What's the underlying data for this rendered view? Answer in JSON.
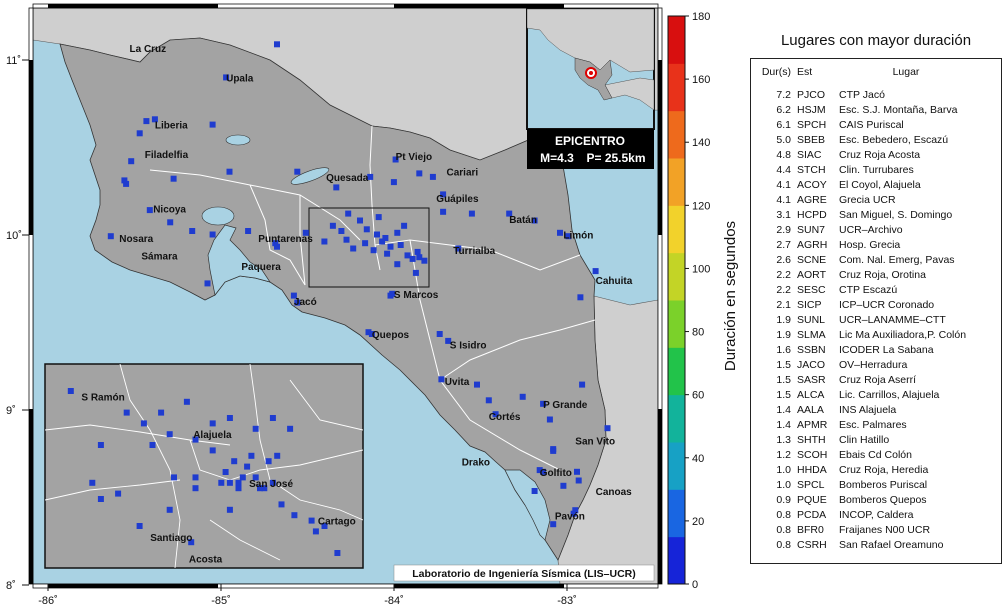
{
  "map": {
    "credit": "Laboratorio de Ingeniería Sísmica (LIS–UCR)",
    "colors": {
      "sea": "#a9d2e3",
      "land": "#a3a3a3",
      "neighbor": "#cfcfcf",
      "boundary": "#ffffff",
      "station": "#1f3ccf"
    },
    "lon_ticks": [
      "-86˚",
      "-85˚",
      "-84˚",
      "-83˚"
    ],
    "lat_ticks": [
      "11˚",
      "10˚",
      "9˚",
      "8˚"
    ],
    "cities": [
      {
        "name": "La Cruz",
        "lon": -85.59,
        "lat": 11.07
      },
      {
        "name": "Upala",
        "lon": -85.02,
        "lat": 10.9
      },
      {
        "name": "Liberia",
        "lon": -85.44,
        "lat": 10.63
      },
      {
        "name": "Filadelfia",
        "lon": -85.5,
        "lat": 10.46
      },
      {
        "name": "Quesada",
        "lon": -84.43,
        "lat": 10.33
      },
      {
        "name": "Pt Viejo",
        "lon": -84.02,
        "lat": 10.45
      },
      {
        "name": "Cariari",
        "lon": -83.72,
        "lat": 10.36
      },
      {
        "name": "Nicoya",
        "lon": -85.45,
        "lat": 10.15
      },
      {
        "name": "Guápiles",
        "lon": -83.78,
        "lat": 10.21
      },
      {
        "name": "Batán",
        "lon": -83.35,
        "lat": 10.09
      },
      {
        "name": "Limón",
        "lon": -83.03,
        "lat": 10.0
      },
      {
        "name": "Nosara",
        "lon": -85.65,
        "lat": 9.98
      },
      {
        "name": "Puntarenas",
        "lon": -84.83,
        "lat": 9.98
      },
      {
        "name": "Turrialba",
        "lon": -83.68,
        "lat": 9.91
      },
      {
        "name": "Sámara",
        "lon": -85.52,
        "lat": 9.88
      },
      {
        "name": "Paquera",
        "lon": -84.93,
        "lat": 9.82
      },
      {
        "name": "Cahuita",
        "lon": -82.84,
        "lat": 9.74
      },
      {
        "name": "S Marcos",
        "lon": -84.03,
        "lat": 9.66
      },
      {
        "name": "Jacó",
        "lon": -84.62,
        "lat": 9.62
      },
      {
        "name": "Quepos",
        "lon": -84.16,
        "lat": 9.43
      },
      {
        "name": "S Isidro",
        "lon": -83.7,
        "lat": 9.37
      },
      {
        "name": "Uvita",
        "lon": -83.73,
        "lat": 9.16
      },
      {
        "name": "P Grande",
        "lon": -83.15,
        "lat": 9.03
      },
      {
        "name": "Cortés",
        "lon": -83.47,
        "lat": 8.96
      },
      {
        "name": "San Vito",
        "lon": -82.96,
        "lat": 8.82
      },
      {
        "name": "Drako",
        "lon": -83.63,
        "lat": 8.7
      },
      {
        "name": "Golfito",
        "lon": -83.17,
        "lat": 8.64
      },
      {
        "name": "Canoas",
        "lon": -82.84,
        "lat": 8.53
      },
      {
        "name": "Pavón",
        "lon": -83.08,
        "lat": 8.39
      }
    ],
    "stations": [
      [
        -84.72,
        11.09
      ],
      [
        -85.02,
        10.9
      ],
      [
        -85.49,
        10.65
      ],
      [
        -85.44,
        10.66
      ],
      [
        -85.53,
        10.58
      ],
      [
        -85.1,
        10.63
      ],
      [
        -85.58,
        10.42
      ],
      [
        -85.62,
        10.31
      ],
      [
        -85.61,
        10.29
      ],
      [
        -85.33,
        10.32
      ],
      [
        -85.0,
        10.36
      ],
      [
        -84.6,
        10.36
      ],
      [
        -84.37,
        10.27
      ],
      [
        -84.17,
        10.33
      ],
      [
        -84.03,
        10.3
      ],
      [
        -84.02,
        10.43
      ],
      [
        -83.88,
        10.35
      ],
      [
        -83.8,
        10.33
      ],
      [
        -83.74,
        10.23
      ],
      [
        -83.57,
        10.12
      ],
      [
        -83.35,
        10.12
      ],
      [
        -83.2,
        10.08
      ],
      [
        -83.05,
        10.01
      ],
      [
        -83.0,
        9.99
      ],
      [
        -85.47,
        10.14
      ],
      [
        -85.35,
        10.07
      ],
      [
        -85.22,
        10.02
      ],
      [
        -85.1,
        10.0
      ],
      [
        -84.89,
        10.02
      ],
      [
        -84.73,
        9.95
      ],
      [
        -84.72,
        9.93
      ],
      [
        -85.7,
        9.99
      ],
      [
        -85.13,
        9.72
      ],
      [
        -84.62,
        9.65
      ],
      [
        -84.6,
        9.61
      ],
      [
        -84.18,
        9.44
      ],
      [
        -84.16,
        9.43
      ],
      [
        -84.05,
        9.65
      ],
      [
        -84.04,
        9.66
      ],
      [
        -83.9,
        9.78
      ],
      [
        -83.76,
        9.43
      ],
      [
        -83.71,
        9.39
      ],
      [
        -83.75,
        9.17
      ],
      [
        -83.54,
        9.14
      ],
      [
        -83.47,
        9.05
      ],
      [
        -83.43,
        8.97
      ],
      [
        -83.27,
        9.07
      ],
      [
        -83.15,
        9.03
      ],
      [
        -83.11,
        8.94
      ],
      [
        -82.92,
        9.14
      ],
      [
        -82.77,
        8.89
      ],
      [
        -82.84,
        9.79
      ],
      [
        -82.93,
        9.64
      ],
      [
        -83.09,
        8.77
      ],
      [
        -83.09,
        8.76
      ],
      [
        -83.17,
        8.65
      ],
      [
        -83.15,
        8.64
      ],
      [
        -82.95,
        8.64
      ],
      [
        -82.94,
        8.59
      ],
      [
        -82.96,
        8.42
      ],
      [
        -82.97,
        8.4
      ],
      [
        -83.03,
        8.56
      ],
      [
        -83.09,
        8.34
      ],
      [
        -83.2,
        8.53
      ],
      [
        -84.55,
        10.01
      ],
      [
        -84.44,
        9.96
      ],
      [
        -84.34,
        10.02
      ],
      [
        -84.31,
        9.97
      ],
      [
        -84.23,
        10.08
      ],
      [
        -84.19,
        10.03
      ],
      [
        -84.13,
        10.0
      ],
      [
        -84.1,
        9.96
      ],
      [
        -84.08,
        9.98
      ],
      [
        -84.05,
        9.93
      ],
      [
        -84.01,
        10.01
      ],
      [
        -83.99,
        9.94
      ],
      [
        -83.95,
        9.88
      ],
      [
        -83.92,
        9.86
      ],
      [
        -83.89,
        9.9
      ],
      [
        -83.88,
        9.87
      ],
      [
        -83.85,
        9.85
      ],
      [
        -84.27,
        9.92
      ],
      [
        -84.2,
        9.95
      ],
      [
        -84.15,
        9.91
      ],
      [
        -84.07,
        9.89
      ],
      [
        -84.01,
        9.83
      ],
      [
        -83.97,
        10.05
      ],
      [
        -84.39,
        10.05
      ],
      [
        -84.3,
        10.12
      ],
      [
        -84.12,
        10.1
      ],
      [
        -83.74,
        10.13
      ],
      [
        -83.65,
        9.92
      ]
    ],
    "inset": {
      "cities": [
        {
          "name": "S Ramón",
          "lon": -84.47,
          "lat": 10.09
        },
        {
          "name": "Alajuela",
          "lon": -84.21,
          "lat": 10.02
        },
        {
          "name": "San José",
          "lon": -84.08,
          "lat": 9.93
        },
        {
          "name": "Santiago",
          "lon": -84.31,
          "lat": 9.83
        },
        {
          "name": "Cartago",
          "lon": -83.92,
          "lat": 9.86
        },
        {
          "name": "Acosta",
          "lon": -84.22,
          "lat": 9.79
        }
      ],
      "stations": [
        [
          -84.49,
          10.1
        ],
        [
          -84.36,
          10.06
        ],
        [
          -84.22,
          10.08
        ],
        [
          -84.32,
          10.04
        ],
        [
          -84.28,
          10.06
        ],
        [
          -84.42,
          10.0
        ],
        [
          -84.3,
          10.0
        ],
        [
          -84.26,
          10.02
        ],
        [
          -84.2,
          10.01
        ],
        [
          -84.16,
          10.04
        ],
        [
          -84.12,
          10.05
        ],
        [
          -84.06,
          10.03
        ],
        [
          -84.02,
          10.05
        ],
        [
          -83.98,
          10.03
        ],
        [
          -84.16,
          9.99
        ],
        [
          -84.11,
          9.97
        ],
        [
          -84.07,
          9.98
        ],
        [
          -84.03,
          9.97
        ],
        [
          -84.01,
          9.98
        ],
        [
          -84.13,
          9.95
        ],
        [
          -84.09,
          9.94
        ],
        [
          -84.06,
          9.94
        ],
        [
          -84.05,
          9.92
        ],
        [
          -84.02,
          9.93
        ],
        [
          -84.44,
          9.93
        ],
        [
          -84.38,
          9.91
        ],
        [
          -84.25,
          9.94
        ],
        [
          -84.2,
          9.94
        ],
        [
          -84.14,
          9.93
        ],
        [
          -84.1,
          9.92
        ],
        [
          -84.04,
          9.92
        ],
        [
          -84.26,
          9.88
        ],
        [
          -84.2,
          9.92
        ],
        [
          -84.12,
          9.93
        ],
        [
          -84.1,
          9.93
        ],
        [
          -84.33,
          9.85
        ],
        [
          -84.21,
          9.82
        ],
        [
          -84.18,
          9.78
        ],
        [
          -83.97,
          9.87
        ],
        [
          -83.93,
          9.86
        ],
        [
          -83.9,
          9.85
        ],
        [
          -83.92,
          9.84
        ],
        [
          -83.87,
          9.8
        ],
        [
          -84.0,
          9.89
        ],
        [
          -84.42,
          9.9
        ],
        [
          -84.12,
          9.88
        ],
        [
          -84.08,
          9.96
        ]
      ]
    },
    "epicenter_box": {
      "label": "EPICENTRO",
      "magnitude": "M=4.3",
      "depth": "P= 25.5km",
      "marker_lon": -84.05,
      "marker_lat": 9.93
    }
  },
  "colorbar": {
    "label": "Duración en segundos",
    "ticks": [
      "0",
      "20",
      "40",
      "60",
      "80",
      "100",
      "120",
      "140",
      "160",
      "180"
    ],
    "colors": [
      "#1624d8",
      "#1966e2",
      "#17a1c5",
      "#12b39b",
      "#22c34a",
      "#7bd12a",
      "#c3d426",
      "#f2d22b",
      "#f2a226",
      "#ee6a1c",
      "#e8321a",
      "#d80f0f"
    ]
  },
  "legend": {
    "title": "Lugares con mayor duración",
    "headers": {
      "dur": "Dur(s)",
      "est": "Est",
      "lugar": "Lugar"
    },
    "rows": [
      {
        "dur": "7.2",
        "est": "PJCO",
        "lugar": "CTP Jacó"
      },
      {
        "dur": "6.2",
        "est": "HSJM",
        "lugar": "Esc. S.J. Montaña, Barva"
      },
      {
        "dur": "6.1",
        "est": "SPCH",
        "lugar": "CAIS Puriscal"
      },
      {
        "dur": "5.0",
        "est": "SBEB",
        "lugar": "Esc. Bebedero, Escazú"
      },
      {
        "dur": "4.8",
        "est": "SIAC",
        "lugar": "Cruz Roja Acosta"
      },
      {
        "dur": "4.4",
        "est": "STCH",
        "lugar": "Clin. Turrubares"
      },
      {
        "dur": "4.1",
        "est": "ACOY",
        "lugar": "El Coyol, Alajuela"
      },
      {
        "dur": "4.1",
        "est": "AGRE",
        "lugar": "Grecia UCR"
      },
      {
        "dur": "3.1",
        "est": "HCPD",
        "lugar": "San Miguel, S. Domingo"
      },
      {
        "dur": "2.9",
        "est": "SUN7",
        "lugar": "UCR–Archivo"
      },
      {
        "dur": "2.7",
        "est": "AGRH",
        "lugar": "Hosp. Grecia"
      },
      {
        "dur": "2.6",
        "est": "SCNE",
        "lugar": "Com. Nal. Emerg, Pavas"
      },
      {
        "dur": "2.2",
        "est": "AORT",
        "lugar": "Cruz Roja, Orotina"
      },
      {
        "dur": "2.2",
        "est": "SESC",
        "lugar": "CTP Escazú"
      },
      {
        "dur": "2.1",
        "est": "SICP",
        "lugar": "ICP–UCR Coronado"
      },
      {
        "dur": "1.9",
        "est": "SUNL",
        "lugar": "UCR–LANAMME–CTT"
      },
      {
        "dur": "1.9",
        "est": "SLMA",
        "lugar": "Lic Ma Auxiliadora,P. Colón"
      },
      {
        "dur": "1.6",
        "est": "SSBN",
        "lugar": "ICODER La Sabana"
      },
      {
        "dur": "1.5",
        "est": "JACO",
        "lugar": "OV–Herradura"
      },
      {
        "dur": "1.5",
        "est": "SASR",
        "lugar": "Cruz Roja Aserrí"
      },
      {
        "dur": "1.5",
        "est": "ALCA",
        "lugar": "Lic. Carrillos, Alajuela"
      },
      {
        "dur": "1.4",
        "est": "AALA",
        "lugar": "INS Alajuela"
      },
      {
        "dur": "1.4",
        "est": "APMR",
        "lugar": "Esc. Palmares"
      },
      {
        "dur": "1.3",
        "est": "SHTH",
        "lugar": "Clin Hatillo"
      },
      {
        "dur": "1.2",
        "est": "SCOH",
        "lugar": "Ebais Cd Colón"
      },
      {
        "dur": "1.0",
        "est": "HHDA",
        "lugar": "Cruz Roja, Heredia"
      },
      {
        "dur": "1.0",
        "est": "SPCL",
        "lugar": "Bomberos Puriscal"
      },
      {
        "dur": "0.9",
        "est": "PQUE",
        "lugar": "Bomberos Quepos"
      },
      {
        "dur": "0.8",
        "est": "PCDA",
        "lugar": "INCOP, Caldera"
      },
      {
        "dur": "0.8",
        "est": "BFR0",
        "lugar": "Fraijanes N00 UCR"
      },
      {
        "dur": "0.8",
        "est": "CSRH",
        "lugar": "San Rafael Oreamuno"
      }
    ]
  }
}
